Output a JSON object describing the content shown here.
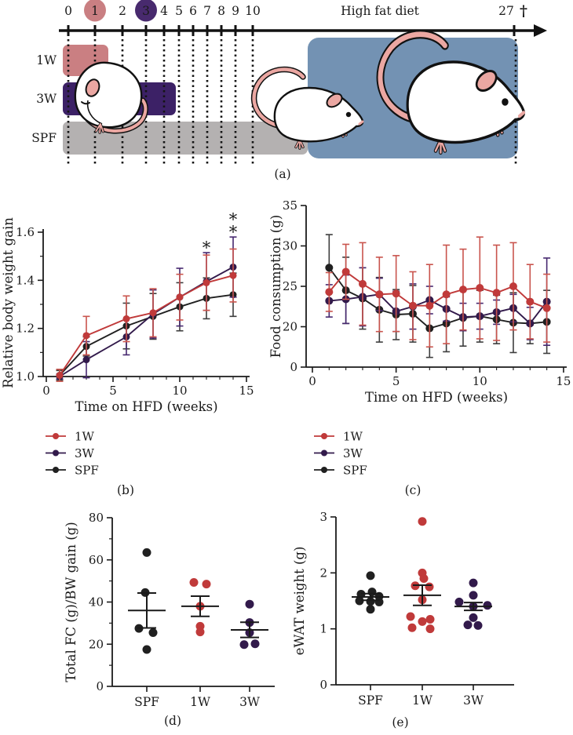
{
  "panels": {
    "a": {
      "label": "(a)"
    },
    "b": {
      "label": "(b)"
    },
    "c": {
      "label": "(c)"
    },
    "d": {
      "label": "(d)"
    },
    "e": {
      "label": "(e)"
    }
  },
  "colors": {
    "red": "#c03a3a",
    "red_err": "#c9544d",
    "purple": "#321a4b",
    "purple_err": "#46286f",
    "black": "#202020",
    "black_err": "#3d3d3d",
    "star_red": "#d4605c",
    "star_purple": "#5c4b94",
    "pink_bar": "#ca7f82",
    "pink_circle": "#c97f82",
    "purple_bar": "#3c2166",
    "purple_circle": "#482a6e",
    "gray_bar": "#b4b1b1",
    "blue_box": "#7392b3",
    "mouse_pink": "#eba7a2",
    "axis": "#1a1a1a"
  },
  "timeline": {
    "week_ticks": [
      "0",
      "1",
      "2",
      "3",
      "4",
      "5",
      "6",
      "7",
      "8",
      "9",
      "10"
    ],
    "end_week": "27",
    "end_symbol": "†",
    "diet_label": "High fat diet",
    "highlighted_weeks": [
      {
        "week": "1",
        "color_key": "pink_circle"
      },
      {
        "week": "3",
        "color_key": "purple_circle"
      }
    ],
    "rows": [
      {
        "label": "1W",
        "color_key": "pink_bar"
      },
      {
        "label": "3W",
        "color_key": "purple_bar"
      },
      {
        "label": "SPF",
        "color_key": "gray_bar"
      }
    ]
  },
  "chart_data": [
    {
      "id": "b",
      "type": "line",
      "xlabel": "Time on HFD (weeks)",
      "ylabel": "Relative body weight gain",
      "x": [
        1,
        3,
        6,
        8,
        10,
        12,
        14
      ],
      "xlim": [
        0,
        15
      ],
      "xticks": [
        0,
        5,
        10,
        15
      ],
      "x_minor_step": 1,
      "ylim": [
        1.0,
        1.6
      ],
      "yticks": [
        1.0,
        1.2,
        1.4,
        1.6
      ],
      "yticks_minor": [
        1.1,
        1.3,
        1.5
      ],
      "ytick_format": "fixed1",
      "grid": false,
      "legend_position": "below-left",
      "series": [
        {
          "name": "SPF",
          "color_key": "black",
          "err_color_key": "black_err",
          "values": [
            1.005,
            1.125,
            1.21,
            1.25,
            1.29,
            1.325,
            1.34
          ],
          "errors": [
            0.02,
            0.04,
            0.095,
            0.095,
            0.1,
            0.085,
            0.09
          ]
        },
        {
          "name": "3W",
          "color_key": "purple",
          "err_color_key": "purple_err",
          "values": [
            1.0,
            1.07,
            1.165,
            1.26,
            1.33,
            1.395,
            1.455
          ],
          "errors": [
            0.01,
            0.075,
            0.075,
            0.1,
            0.12,
            0.12,
            0.125
          ]
        },
        {
          "name": "1W",
          "color_key": "red",
          "err_color_key": "red_err",
          "values": [
            1.005,
            1.17,
            1.24,
            1.265,
            1.33,
            1.39,
            1.42
          ],
          "errors": [
            0.025,
            0.08,
            0.095,
            0.1,
            0.095,
            0.115,
            0.11
          ]
        }
      ],
      "legend_order": [
        "1W",
        "3W",
        "SPF"
      ],
      "annotations": [
        {
          "x": 12,
          "stars": [
            "star_red"
          ]
        },
        {
          "x": 14,
          "stars": [
            "star_purple",
            "star_red"
          ]
        }
      ]
    },
    {
      "id": "c",
      "type": "line",
      "xlabel": "Time on HFD (weeks)",
      "ylabel": "Food consumption (g)",
      "x": [
        1,
        2,
        3,
        4,
        5,
        6,
        7,
        8,
        9,
        10,
        11,
        12,
        13,
        14
      ],
      "xlim": [
        0,
        15
      ],
      "xticks": [
        0,
        5,
        10,
        15
      ],
      "x_minor_step": 1,
      "yticks": [
        0,
        20,
        25,
        30,
        35
      ],
      "y_break_zero": true,
      "grid": false,
      "legend_position": "below-left",
      "series": [
        {
          "name": "SPF",
          "color_key": "black",
          "err_color_key": "black_err",
          "values": [
            27.3,
            24.5,
            23.5,
            22.1,
            21.5,
            21.6,
            19.8,
            20.4,
            21.1,
            21.3,
            20.9,
            20.5,
            20.4,
            20.6
          ],
          "errors": [
            4.1,
            4.1,
            3.8,
            4.0,
            3.1,
            3.5,
            3.6,
            3.5,
            3.5,
            3.2,
            3.0,
            3.7,
            2.5,
            3.9
          ]
        },
        {
          "name": "3W",
          "color_key": "purple",
          "err_color_key": "purple_err",
          "values": [
            23.2,
            23.4,
            23.7,
            24.0,
            21.9,
            22.5,
            23.3,
            22.2,
            21.2,
            21.3,
            21.8,
            22.3,
            20.4,
            23.1
          ],
          "errors": [
            2.0,
            3.0,
            3.6,
            2.0,
            2.5,
            2.8,
            1.7,
            1.5,
            1.7,
            1.6,
            1.5,
            1.7,
            2.0,
            5.4
          ]
        },
        {
          "name": "1W",
          "color_key": "red",
          "err_color_key": "red_err",
          "values": [
            24.3,
            26.8,
            25.3,
            24.0,
            24.1,
            22.6,
            22.6,
            24.0,
            24.6,
            24.8,
            24.2,
            25.0,
            23.1,
            22.3
          ],
          "errors": [
            2.4,
            3.4,
            5.1,
            4.6,
            4.7,
            4.2,
            5.1,
            6.1,
            5.0,
            6.3,
            5.9,
            5.4,
            4.6,
            4.2
          ]
        }
      ],
      "legend_order": [
        "1W",
        "3W",
        "SPF"
      ],
      "annotations": []
    },
    {
      "id": "d",
      "type": "scatter",
      "ylabel": "Total FC (g)/BW gain (g)",
      "categories": [
        "SPF",
        "1W",
        "3W"
      ],
      "ylim": [
        0,
        80
      ],
      "yticks": [
        0,
        20,
        40,
        60,
        80
      ],
      "yticks_minor": [
        10,
        30,
        50,
        70
      ],
      "groups": [
        {
          "name": "SPF",
          "color_key": "black",
          "points": [
            63.5,
            44.5,
            27.5,
            25.5,
            17.5
          ],
          "jitter": [
            0,
            -2,
            -10,
            8,
            0
          ],
          "mean": 36,
          "sem": 8.3
        },
        {
          "name": "1W",
          "color_key": "red",
          "points": [
            49.3,
            48.5,
            38,
            28.5,
            25.8
          ],
          "jitter": [
            -8,
            8,
            0,
            0,
            0
          ],
          "mean": 38,
          "sem": 4.8
        },
        {
          "name": "3W",
          "color_key": "purple",
          "points": [
            39,
            30.3,
            25.5,
            19.8,
            20.2
          ],
          "jitter": [
            0,
            0,
            0,
            -7,
            7
          ],
          "mean": 26.8,
          "sem": 3.6
        }
      ]
    },
    {
      "id": "e",
      "type": "scatter",
      "ylabel": "eWAT weight (g)",
      "categories": [
        "SPF",
        "1W",
        "3W"
      ],
      "ylim": [
        0,
        3
      ],
      "yticks": [
        0,
        1,
        2,
        3
      ],
      "yticks_minor": [],
      "groups": [
        {
          "name": "SPF",
          "color_key": "black",
          "points": [
            1.95,
            1.66,
            1.62,
            1.58,
            1.5,
            1.49,
            1.48,
            1.35
          ],
          "jitter": [
            0,
            2,
            -12,
            11,
            -14,
            0,
            11,
            0
          ],
          "mean": 1.57,
          "sem": 0.06
        },
        {
          "name": "1W",
          "color_key": "red",
          "points": [
            2.92,
            2.0,
            1.9,
            1.77,
            1.75,
            1.52,
            1.22,
            1.17,
            1.13,
            1.02,
            1.0
          ],
          "jitter": [
            0,
            0,
            2,
            -9,
            9,
            0,
            -15,
            10,
            0,
            -13,
            10
          ],
          "mean": 1.6,
          "sem": 0.18
        },
        {
          "name": "3W",
          "color_key": "purple",
          "points": [
            1.82,
            1.6,
            1.48,
            1.42,
            1.4,
            1.2,
            1.07,
            1.06
          ],
          "jitter": [
            0,
            0,
            -18,
            18,
            0,
            0,
            -7,
            6
          ],
          "mean": 1.4,
          "sem": 0.07
        }
      ]
    }
  ]
}
